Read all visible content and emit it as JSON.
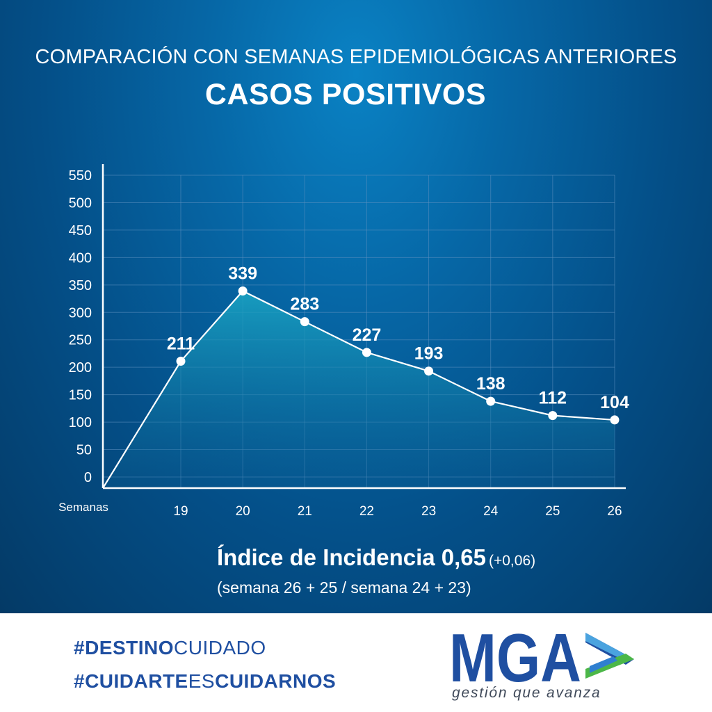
{
  "header": {
    "subtitle": "COMPARACIÓN CON SEMANAS EPIDEMIOLÓGICAS ANTERIORES",
    "title": "CASOS POSITIVOS"
  },
  "chart_data": {
    "type": "area",
    "title": "CASOS POSITIVOS",
    "xlabel": "Semanas",
    "ylabel": "",
    "categories": [
      "19",
      "20",
      "21",
      "22",
      "23",
      "24",
      "25",
      "26"
    ],
    "values": [
      211,
      339,
      283,
      227,
      193,
      138,
      112,
      104
    ],
    "data_labels": [
      "211",
      "339",
      "283",
      "227",
      "193",
      "138",
      "112",
      "104"
    ],
    "yticks": [
      0,
      50,
      100,
      150,
      200,
      250,
      300,
      350,
      400,
      450,
      500,
      550
    ],
    "ylim": [
      0,
      550
    ],
    "grid": true,
    "starts_from_zero": true,
    "colors": {
      "line": "#ffffff",
      "area_top": "#1aa6c4",
      "area_bottom": "#0a5f93",
      "grid": "#5c8fbf"
    }
  },
  "incidence": {
    "label": "Índice de Incidencia 0,65",
    "delta": "(+0,06)",
    "formula": "(semana 26 + 25 / semana 24 + 23)"
  },
  "footer": {
    "hashtag1_bold": "#DESTINO",
    "hashtag1_light": "CUIDADO",
    "hashtag2_bold_a": "#CUIDARTE",
    "hashtag2_light": "ES",
    "hashtag2_bold_b": "CUIDARNOS",
    "logo_text": "MGA",
    "logo_tagline": "gestión que avanza",
    "colors": {
      "brand_blue": "#1f4fa1",
      "brand_green": "#4cb748",
      "brand_light": "#4aa3df"
    }
  }
}
